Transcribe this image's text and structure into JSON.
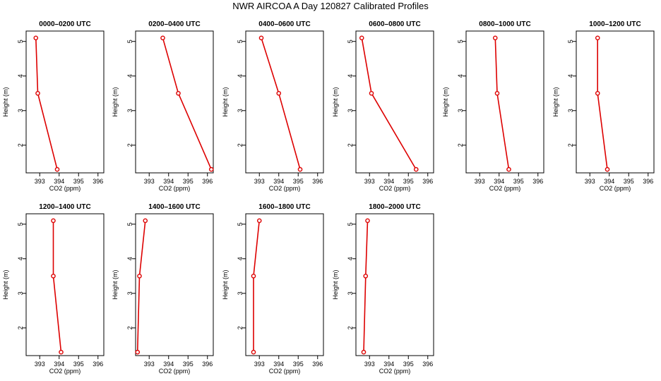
{
  "title": "NWR AIRCOA A  Day 120827  Calibrated Profiles",
  "chart_data": [
    {
      "type": "line",
      "title": "0000–0200 UTC",
      "xlabel": "CO2 (ppm)",
      "ylabel": "Height (m)",
      "x": [
        392.8,
        392.9,
        393.9
      ],
      "y": [
        5.1,
        3.5,
        1.3
      ],
      "xlim": [
        392.3,
        396.3
      ],
      "ylim": [
        1.2,
        5.3
      ],
      "xticks": [
        393,
        394,
        395,
        396
      ],
      "yticks": [
        2,
        3,
        4,
        5
      ],
      "color": "#dd0000"
    },
    {
      "type": "line",
      "title": "0200–0400 UTC",
      "xlabel": "CO2 (ppm)",
      "ylabel": "Height (m)",
      "x": [
        393.7,
        394.5,
        396.2
      ],
      "y": [
        5.1,
        3.5,
        1.3
      ],
      "xlim": [
        392.3,
        396.3
      ],
      "ylim": [
        1.2,
        5.3
      ],
      "xticks": [
        393,
        394,
        395,
        396
      ],
      "yticks": [
        2,
        3,
        4,
        5
      ],
      "color": "#dd0000"
    },
    {
      "type": "line",
      "title": "0400–0600 UTC",
      "xlabel": "CO2 (ppm)",
      "ylabel": "Height (m)",
      "x": [
        393.1,
        394.0,
        395.1
      ],
      "y": [
        5.1,
        3.5,
        1.3
      ],
      "xlim": [
        392.3,
        396.3
      ],
      "ylim": [
        1.2,
        5.3
      ],
      "xticks": [
        393,
        394,
        395,
        396
      ],
      "yticks": [
        2,
        3,
        4,
        5
      ],
      "color": "#dd0000"
    },
    {
      "type": "line",
      "title": "0600–0800 UTC",
      "xlabel": "CO2 (ppm)",
      "ylabel": "Height (m)",
      "x": [
        392.6,
        393.1,
        395.4
      ],
      "y": [
        5.1,
        3.5,
        1.3
      ],
      "xlim": [
        392.3,
        396.3
      ],
      "ylim": [
        1.2,
        5.3
      ],
      "xticks": [
        393,
        394,
        395,
        396
      ],
      "yticks": [
        2,
        3,
        4,
        5
      ],
      "color": "#dd0000"
    },
    {
      "type": "line",
      "title": "0800–1000 UTC",
      "xlabel": "CO2 (ppm)",
      "ylabel": "Height (m)",
      "x": [
        393.8,
        393.9,
        394.5
      ],
      "y": [
        5.1,
        3.5,
        1.3
      ],
      "xlim": [
        392.3,
        396.3
      ],
      "ylim": [
        1.2,
        5.3
      ],
      "xticks": [
        393,
        394,
        395,
        396
      ],
      "yticks": [
        2,
        3,
        4,
        5
      ],
      "color": "#dd0000"
    },
    {
      "type": "line",
      "title": "1000–1200 UTC",
      "xlabel": "CO2 (ppm)",
      "ylabel": "Height (m)",
      "x": [
        393.4,
        393.4,
        393.9
      ],
      "y": [
        5.1,
        3.5,
        1.3
      ],
      "xlim": [
        392.3,
        396.3
      ],
      "ylim": [
        1.2,
        5.3
      ],
      "xticks": [
        393,
        394,
        395,
        396
      ],
      "yticks": [
        2,
        3,
        4,
        5
      ],
      "color": "#dd0000"
    },
    {
      "type": "line",
      "title": "1200–1400 UTC",
      "xlabel": "CO2 (ppm)",
      "ylabel": "Height (m)",
      "x": [
        393.7,
        393.7,
        394.1
      ],
      "y": [
        5.1,
        3.5,
        1.3
      ],
      "xlim": [
        392.3,
        396.3
      ],
      "ylim": [
        1.2,
        5.3
      ],
      "xticks": [
        393,
        394,
        395,
        396
      ],
      "yticks": [
        2,
        3,
        4,
        5
      ],
      "color": "#dd0000"
    },
    {
      "type": "line",
      "title": "1400–1600 UTC",
      "xlabel": "CO2 (ppm)",
      "ylabel": "Height (m)",
      "x": [
        392.8,
        392.5,
        392.4
      ],
      "y": [
        5.1,
        3.5,
        1.3
      ],
      "xlim": [
        392.3,
        396.3
      ],
      "ylim": [
        1.2,
        5.3
      ],
      "xticks": [
        393,
        394,
        395,
        396
      ],
      "yticks": [
        2,
        3,
        4,
        5
      ],
      "color": "#dd0000"
    },
    {
      "type": "line",
      "title": "1600–1800 UTC",
      "xlabel": "CO2 (ppm)",
      "ylabel": "Height (m)",
      "x": [
        393.0,
        392.7,
        392.7
      ],
      "y": [
        5.1,
        3.5,
        1.3
      ],
      "xlim": [
        392.3,
        396.3
      ],
      "ylim": [
        1.2,
        5.3
      ],
      "xticks": [
        393,
        394,
        395,
        396
      ],
      "yticks": [
        2,
        3,
        4,
        5
      ],
      "color": "#dd0000"
    },
    {
      "type": "line",
      "title": "1800–2000 UTC",
      "xlabel": "CO2 (ppm)",
      "ylabel": "Height (m)",
      "x": [
        392.9,
        392.8,
        392.7
      ],
      "y": [
        5.1,
        3.5,
        1.3
      ],
      "xlim": [
        392.3,
        396.3
      ],
      "ylim": [
        1.2,
        5.3
      ],
      "xticks": [
        393,
        394,
        395,
        396
      ],
      "yticks": [
        2,
        3,
        4,
        5
      ],
      "color": "#dd0000"
    }
  ]
}
